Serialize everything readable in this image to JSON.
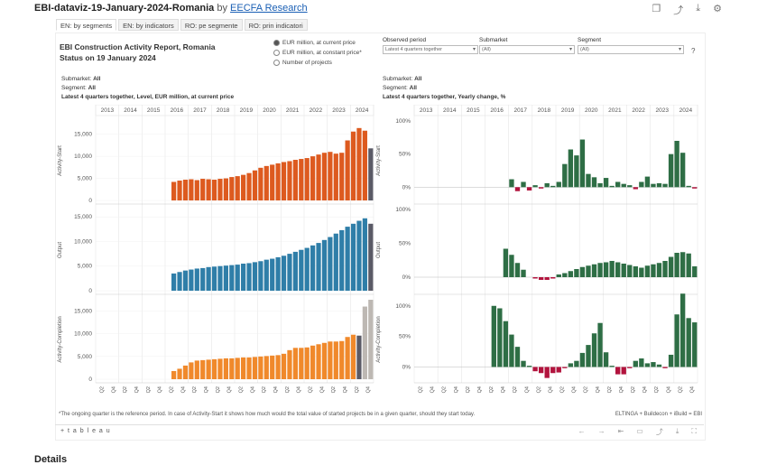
{
  "header": {
    "title": "EBI-dataviz-19-January-2024-Romania",
    "by": "by",
    "author": "EECFA Research"
  },
  "tabs": [
    "EN: by segments",
    "EN: by indicators",
    "RO: pe segmente",
    "RO: prin indicatori"
  ],
  "report": {
    "title_line1": "EBI Construction Activity Report, Romania",
    "title_line2": "Status on 19 January 2024"
  },
  "measure_options": [
    "EUR million, at current price",
    "EUR million, at constant price*",
    "Number of projects"
  ],
  "filters": {
    "observed_period": {
      "label": "Observed period",
      "value": "Latest 4 quarters together"
    },
    "submarket": {
      "label": "Submarket",
      "value": "(All)"
    },
    "segment": {
      "label": "Segment",
      "value": "(All)"
    }
  },
  "help": "?",
  "left_meta": {
    "submarket_label": "Submarket:",
    "submarket": "All",
    "segment_label": "Segment:",
    "segment": "All",
    "subtitle": "Latest 4 quarters together, Level, EUR million, at current price"
  },
  "right_meta": {
    "submarket_label": "Submarket:",
    "submarket": "All",
    "segment_label": "Segment:",
    "segment": "All",
    "subtitle": "Latest 4 quarters together, Yearly change, %"
  },
  "footnote": "*The ongoing quarter is the reference period. In case of Activity-Start it shows how much would the total value of started projects be in a given quarter, should they start today.",
  "footer_right": "ELTINGA + Buildecon + iBuild = EBI",
  "tableau_logo": "+ t a b l e a u",
  "details": "Details",
  "colors": {
    "start": "#dd5a1f",
    "output": "#2f7ea8",
    "completion": "#f0892b",
    "current": "#5a5a66",
    "forecast": "#bdb8b3",
    "pos": "#2e6e45",
    "neg": "#b2133d"
  },
  "chart_data": [
    {
      "type": "bar",
      "title": "",
      "ylabel": "Activity-Start",
      "years": [
        "2013",
        "2014",
        "2015",
        "2016",
        "2017",
        "2018",
        "2019",
        "2020",
        "2021",
        "2022",
        "2023",
        "2024"
      ],
      "yticks": [
        0,
        5000,
        10000,
        15000
      ],
      "ylim": [
        0,
        18000
      ],
      "values": [
        4200,
        4500,
        4700,
        4800,
        4600,
        4900,
        4800,
        4700,
        4900,
        5000,
        5300,
        5500,
        5800,
        6200,
        6800,
        7400,
        7800,
        8100,
        8400,
        8700,
        8900,
        9200,
        9400,
        9600,
        10000,
        10400,
        10800,
        11000,
        10600,
        10800,
        13600,
        15600,
        16400,
        15800,
        11800
      ]
    },
    {
      "type": "bar",
      "title": "",
      "ylabel": "Output",
      "yticks": [
        0,
        5000,
        10000,
        15000
      ],
      "ylim": [
        0,
        16500
      ],
      "values": [
        3500,
        3800,
        4100,
        4300,
        4500,
        4600,
        4800,
        4900,
        5000,
        5100,
        5200,
        5300,
        5500,
        5600,
        5800,
        6000,
        6300,
        6500,
        6800,
        7100,
        7500,
        7900,
        8300,
        8700,
        9200,
        9700,
        10300,
        10900,
        11600,
        12300,
        13000,
        13600,
        14200,
        14700,
        13600
      ]
    },
    {
      "type": "bar",
      "title": "",
      "ylabel": "Activity-Completion",
      "yticks": [
        0,
        5000,
        10000,
        15000
      ],
      "ylim": [
        0,
        17500
      ],
      "values": [
        1800,
        2300,
        3000,
        3700,
        4100,
        4200,
        4300,
        4400,
        4500,
        4600,
        4600,
        4700,
        4800,
        4800,
        4900,
        5000,
        5100,
        5200,
        5300,
        5600,
        6400,
        6900,
        6900,
        7000,
        7400,
        7700,
        8000,
        8300,
        8300,
        8400,
        9300,
        9800,
        9600,
        16000,
        17500
      ],
      "current_index": 32,
      "forecast_indices": [
        33,
        34
      ]
    },
    {
      "type": "bar",
      "title": "",
      "ylabel": "Activity-Start",
      "yticks": [
        "0%",
        "50%",
        "100%"
      ],
      "ylim": [
        -20,
        100
      ],
      "values": [
        0,
        0,
        0,
        0,
        0,
        12,
        -6,
        8,
        -5,
        3,
        -2,
        6,
        2,
        8,
        35,
        57,
        48,
        72,
        20,
        15,
        6,
        14,
        2,
        8,
        5,
        3,
        -3,
        8,
        16,
        5,
        6,
        5,
        50,
        70,
        52,
        2,
        -2
      ]
    },
    {
      "type": "bar",
      "title": "",
      "ylabel": "Output",
      "yticks": [
        "0%",
        "50%",
        "100%"
      ],
      "ylim": [
        -20,
        100
      ],
      "values": [
        0,
        0,
        0,
        0,
        0,
        42,
        33,
        21,
        11,
        0,
        -2,
        -4,
        -4,
        -2,
        4,
        6,
        9,
        12,
        15,
        17,
        19,
        21,
        22,
        24,
        22,
        20,
        18,
        16,
        14,
        17,
        19,
        21,
        24,
        30,
        36,
        37,
        35,
        16
      ]
    },
    {
      "type": "bar",
      "title": "",
      "ylabel": "Activity-Completion",
      "yticks": [
        "0%",
        "50%",
        "100%"
      ],
      "ylim": [
        -20,
        110
      ],
      "values": [
        0,
        0,
        0,
        0,
        0,
        100,
        96,
        75,
        53,
        33,
        10,
        2,
        -7,
        -10,
        -18,
        -10,
        -9,
        -2,
        6,
        10,
        23,
        36,
        55,
        72,
        24,
        2,
        -12,
        -12,
        -2,
        10,
        14,
        6,
        8,
        4,
        -2,
        20,
        86,
        120,
        80,
        73
      ]
    }
  ],
  "quarter_labels": [
    "Q2",
    "Q4"
  ]
}
